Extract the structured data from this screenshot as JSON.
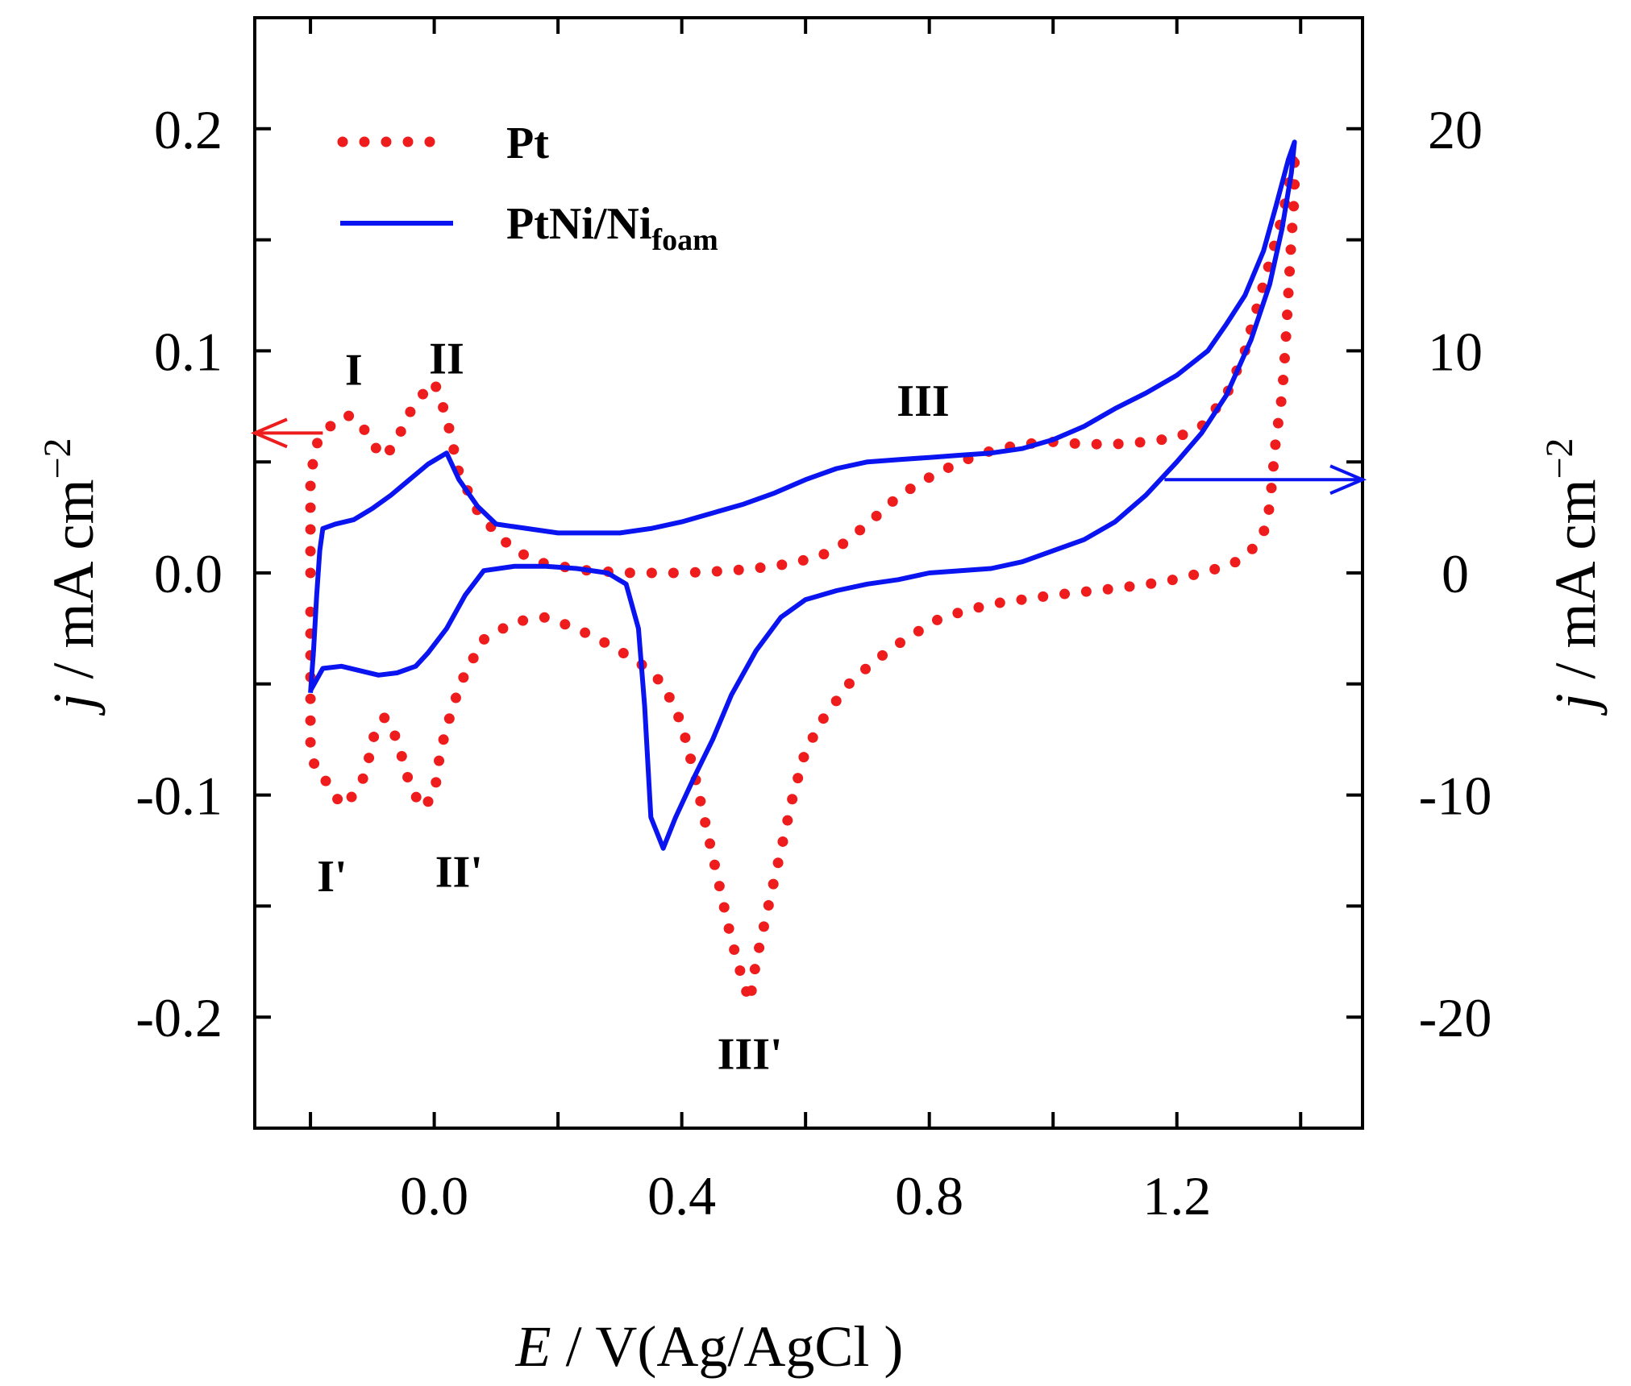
{
  "chart_data": {
    "type": "line",
    "title": "",
    "xlabel": {
      "italic": "E",
      "rest": " / V(Ag/AgCl )"
    },
    "ylabel_left": {
      "italic": "j",
      "rest": " / mA cm",
      "sup": "−2"
    },
    "ylabel_right": {
      "italic": "j",
      "rest": " / mA cm",
      "sup": "−2"
    },
    "xlim": [
      -0.29,
      1.5
    ],
    "ylim_left": [
      -0.25,
      0.25
    ],
    "ylim_right": [
      -25,
      25
    ],
    "x_ticks": [
      -0.2,
      0.0,
      0.2,
      0.4,
      0.6,
      0.8,
      1.0,
      1.2,
      1.4
    ],
    "x_tick_labels": [
      {
        "value": 0.0,
        "label": "0.0"
      },
      {
        "value": 0.4,
        "label": "0.4"
      },
      {
        "value": 0.8,
        "label": "0.8"
      },
      {
        "value": 1.2,
        "label": "1.2"
      }
    ],
    "y_left_ticks": [
      -0.25,
      -0.2,
      -0.15,
      -0.1,
      -0.05,
      0.0,
      0.05,
      0.1,
      0.15,
      0.2,
      0.25
    ],
    "y_left_tick_labels": [
      {
        "value": 0.2,
        "label": "0.2"
      },
      {
        "value": 0.1,
        "label": "0.1"
      },
      {
        "value": 0.0,
        "label": "0.0"
      },
      {
        "value": -0.1,
        "label": "-0.1"
      },
      {
        "value": -0.2,
        "label": "-0.2"
      }
    ],
    "y_right_ticks": [
      -25,
      -20,
      -15,
      -10,
      -5,
      0,
      5,
      10,
      15,
      20,
      25
    ],
    "y_right_tick_labels": [
      {
        "value": 20,
        "label": "20"
      },
      {
        "value": 10,
        "label": "10"
      },
      {
        "value": 0,
        "label": "0"
      },
      {
        "value": -10,
        "label": "-10"
      },
      {
        "value": -20,
        "label": "-20"
      }
    ],
    "legend": {
      "position": "top-left"
    },
    "series": [
      {
        "name": "Pt",
        "axis": "left",
        "color": "#ee1c1c",
        "style": "dotted",
        "points": [
          [
            -0.2,
            0.0
          ],
          [
            -0.2,
            0.02
          ],
          [
            -0.2,
            0.04
          ],
          [
            -0.195,
            0.052
          ],
          [
            -0.19,
            0.058
          ],
          [
            -0.18,
            0.063
          ],
          [
            -0.16,
            0.068
          ],
          [
            -0.14,
            0.071
          ],
          [
            -0.12,
            0.068
          ],
          [
            -0.1,
            0.058
          ],
          [
            -0.08,
            0.052
          ],
          [
            -0.06,
            0.06
          ],
          [
            -0.04,
            0.072
          ],
          [
            -0.02,
            0.08
          ],
          [
            0.0,
            0.086
          ],
          [
            0.02,
            0.07
          ],
          [
            0.04,
            0.045
          ],
          [
            0.07,
            0.028
          ],
          [
            0.1,
            0.018
          ],
          [
            0.13,
            0.01
          ],
          [
            0.18,
            0.004
          ],
          [
            0.25,
            0.001
          ],
          [
            0.32,
            0.0
          ],
          [
            0.4,
            0.0
          ],
          [
            0.48,
            0.001
          ],
          [
            0.55,
            0.003
          ],
          [
            0.62,
            0.007
          ],
          [
            0.66,
            0.013
          ],
          [
            0.7,
            0.022
          ],
          [
            0.74,
            0.032
          ],
          [
            0.78,
            0.04
          ],
          [
            0.82,
            0.046
          ],
          [
            0.86,
            0.051
          ],
          [
            0.9,
            0.055
          ],
          [
            0.95,
            0.058
          ],
          [
            1.0,
            0.059
          ],
          [
            1.05,
            0.058
          ],
          [
            1.1,
            0.058
          ],
          [
            1.15,
            0.059
          ],
          [
            1.2,
            0.061
          ],
          [
            1.24,
            0.066
          ],
          [
            1.28,
            0.08
          ],
          [
            1.31,
            0.1
          ],
          [
            1.33,
            0.12
          ],
          [
            1.35,
            0.14
          ],
          [
            1.37,
            0.16
          ],
          [
            1.385,
            0.18
          ],
          [
            1.39,
            0.19
          ],
          [
            1.39,
            0.17
          ],
          [
            1.385,
            0.15
          ],
          [
            1.38,
            0.125
          ],
          [
            1.375,
            0.1
          ],
          [
            1.37,
            0.08
          ],
          [
            1.36,
            0.06
          ],
          [
            1.355,
            0.045
          ],
          [
            1.35,
            0.03
          ],
          [
            1.34,
            0.018
          ],
          [
            1.32,
            0.01
          ],
          [
            1.29,
            0.004
          ],
          [
            1.24,
            0.0
          ],
          [
            1.18,
            -0.004
          ],
          [
            1.1,
            -0.007
          ],
          [
            1.0,
            -0.01
          ],
          [
            0.9,
            -0.014
          ],
          [
            0.82,
            -0.02
          ],
          [
            0.76,
            -0.03
          ],
          [
            0.71,
            -0.04
          ],
          [
            0.67,
            -0.05
          ],
          [
            0.63,
            -0.065
          ],
          [
            0.6,
            -0.08
          ],
          [
            0.58,
            -0.1
          ],
          [
            0.56,
            -0.125
          ],
          [
            0.54,
            -0.15
          ],
          [
            0.52,
            -0.175
          ],
          [
            0.51,
            -0.193
          ],
          [
            0.5,
            -0.185
          ],
          [
            0.48,
            -0.165
          ],
          [
            0.46,
            -0.14
          ],
          [
            0.44,
            -0.115
          ],
          [
            0.42,
            -0.09
          ],
          [
            0.4,
            -0.068
          ],
          [
            0.37,
            -0.05
          ],
          [
            0.33,
            -0.04
          ],
          [
            0.28,
            -0.032
          ],
          [
            0.23,
            -0.025
          ],
          [
            0.18,
            -0.02
          ],
          [
            0.13,
            -0.022
          ],
          [
            0.08,
            -0.03
          ],
          [
            0.05,
            -0.045
          ],
          [
            0.03,
            -0.06
          ],
          [
            0.01,
            -0.08
          ],
          [
            0.0,
            -0.1
          ],
          [
            -0.02,
            -0.106
          ],
          [
            -0.04,
            -0.095
          ],
          [
            -0.06,
            -0.075
          ],
          [
            -0.08,
            -0.065
          ],
          [
            -0.1,
            -0.075
          ],
          [
            -0.11,
            -0.09
          ],
          [
            -0.13,
            -0.1
          ],
          [
            -0.15,
            -0.105
          ],
          [
            -0.17,
            -0.095
          ],
          [
            -0.19,
            -0.09
          ],
          [
            -0.2,
            -0.08
          ],
          [
            -0.2,
            -0.06
          ],
          [
            -0.2,
            -0.03
          ],
          [
            -0.2,
            -0.01
          ]
        ]
      },
      {
        "name": "PtNi/Ni",
        "name_sub": "foam",
        "axis": "right",
        "color": "#0a14f0",
        "style": "solid",
        "points": [
          [
            -0.2,
            -5.4
          ],
          [
            -0.195,
            -3.5
          ],
          [
            -0.19,
            -1.0
          ],
          [
            -0.185,
            1.0
          ],
          [
            -0.18,
            2.0
          ],
          [
            -0.16,
            2.2
          ],
          [
            -0.13,
            2.4
          ],
          [
            -0.1,
            2.9
          ],
          [
            -0.07,
            3.5
          ],
          [
            -0.04,
            4.2
          ],
          [
            -0.01,
            4.9
          ],
          [
            0.02,
            5.4
          ],
          [
            0.04,
            4.2
          ],
          [
            0.07,
            3.0
          ],
          [
            0.1,
            2.2
          ],
          [
            0.15,
            2.0
          ],
          [
            0.2,
            1.8
          ],
          [
            0.25,
            1.8
          ],
          [
            0.3,
            1.8
          ],
          [
            0.35,
            2.0
          ],
          [
            0.4,
            2.3
          ],
          [
            0.45,
            2.7
          ],
          [
            0.5,
            3.1
          ],
          [
            0.55,
            3.6
          ],
          [
            0.6,
            4.2
          ],
          [
            0.65,
            4.7
          ],
          [
            0.7,
            5.0
          ],
          [
            0.75,
            5.1
          ],
          [
            0.8,
            5.2
          ],
          [
            0.85,
            5.3
          ],
          [
            0.9,
            5.4
          ],
          [
            0.95,
            5.6
          ],
          [
            1.0,
            6.0
          ],
          [
            1.05,
            6.6
          ],
          [
            1.1,
            7.4
          ],
          [
            1.15,
            8.1
          ],
          [
            1.2,
            8.9
          ],
          [
            1.25,
            10.0
          ],
          [
            1.28,
            11.2
          ],
          [
            1.31,
            12.5
          ],
          [
            1.34,
            14.5
          ],
          [
            1.36,
            16.5
          ],
          [
            1.38,
            18.6
          ],
          [
            1.39,
            19.4
          ],
          [
            1.385,
            18.0
          ],
          [
            1.37,
            15.5
          ],
          [
            1.35,
            13.0
          ],
          [
            1.32,
            10.5
          ],
          [
            1.28,
            8.0
          ],
          [
            1.24,
            6.3
          ],
          [
            1.2,
            5.0
          ],
          [
            1.15,
            3.5
          ],
          [
            1.1,
            2.3
          ],
          [
            1.05,
            1.5
          ],
          [
            1.0,
            1.0
          ],
          [
            0.95,
            0.5
          ],
          [
            0.9,
            0.2
          ],
          [
            0.85,
            0.1
          ],
          [
            0.8,
            0.0
          ],
          [
            0.75,
            -0.3
          ],
          [
            0.7,
            -0.5
          ],
          [
            0.65,
            -0.8
          ],
          [
            0.6,
            -1.2
          ],
          [
            0.56,
            -2.0
          ],
          [
            0.52,
            -3.5
          ],
          [
            0.48,
            -5.5
          ],
          [
            0.45,
            -7.5
          ],
          [
            0.42,
            -9.2
          ],
          [
            0.39,
            -11.0
          ],
          [
            0.37,
            -12.4
          ],
          [
            0.35,
            -11.0
          ],
          [
            0.34,
            -6.0
          ],
          [
            0.33,
            -2.5
          ],
          [
            0.31,
            -0.5
          ],
          [
            0.28,
            0.0
          ],
          [
            0.23,
            0.2
          ],
          [
            0.18,
            0.3
          ],
          [
            0.13,
            0.3
          ],
          [
            0.08,
            0.1
          ],
          [
            0.05,
            -1.0
          ],
          [
            0.02,
            -2.5
          ],
          [
            -0.01,
            -3.6
          ],
          [
            -0.03,
            -4.2
          ],
          [
            -0.06,
            -4.5
          ],
          [
            -0.09,
            -4.6
          ],
          [
            -0.12,
            -4.4
          ],
          [
            -0.15,
            -4.2
          ],
          [
            -0.18,
            -4.3
          ],
          [
            -0.2,
            -5.3
          ]
        ]
      }
    ],
    "annotations": [
      {
        "text": "I",
        "x": -0.13,
        "y_left": 0.092
      },
      {
        "text": "II",
        "x": 0.02,
        "y_left": 0.097
      },
      {
        "text": "III",
        "x": 0.79,
        "y_left": 0.078
      },
      {
        "text": "I'",
        "x": -0.165,
        "y_left": -0.136
      },
      {
        "text": "II'",
        "x": 0.04,
        "y_left": -0.134
      },
      {
        "text": "III'",
        "x": 0.51,
        "y_left": -0.216
      }
    ],
    "axis_arrows": [
      {
        "axis": "left",
        "color": "#ee1c1c",
        "y_left": 0.063,
        "from_x": -0.18,
        "direction": "left"
      },
      {
        "axis": "right",
        "color": "#0a14f0",
        "y_right": 4.2,
        "from_x": 1.18,
        "direction": "right"
      }
    ]
  }
}
